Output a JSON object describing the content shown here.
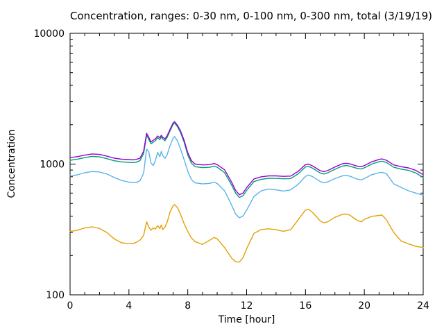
{
  "chart_data": {
    "type": "line",
    "title": "Concentration, ranges: 0-30 nm, 0-100 nm, 0-300 nm, total (3/19/19)",
    "xlabel": "Time [hour]",
    "ylabel": "Concentration",
    "xlim": [
      0,
      24
    ],
    "ylim": [
      100,
      10000
    ],
    "yscale": "log",
    "grid": false,
    "legend": "none",
    "border_color": "#000000",
    "xticks": [
      0,
      4,
      8,
      12,
      16,
      20,
      24
    ],
    "x_minor_step": 1,
    "yticks": [
      100,
      1000,
      10000
    ],
    "x": [
      0,
      0.5,
      1,
      1.5,
      2,
      2.5,
      3,
      3.5,
      4,
      4.25,
      4.5,
      4.75,
      5,
      5.2,
      5.35,
      5.5,
      5.65,
      5.8,
      5.95,
      6.1,
      6.2,
      6.3,
      6.45,
      6.6,
      6.8,
      7,
      7.1,
      7.3,
      7.5,
      7.75,
      8,
      8.25,
      8.5,
      9,
      9.5,
      9.8,
      10,
      10.5,
      11,
      11.25,
      11.5,
      11.75,
      12,
      12.5,
      13,
      13.5,
      14,
      14.5,
      15,
      15.5,
      16,
      16.2,
      16.5,
      17,
      17.25,
      17.5,
      18,
      18.5,
      18.75,
      19,
      19.5,
      19.8,
      20,
      20.5,
      21,
      21.2,
      21.5,
      22,
      22.5,
      23,
      23.5,
      24
    ],
    "series": [
      {
        "name": "0-30 nm",
        "color": "#e69f00",
        "values": [
          305,
          312,
          325,
          331,
          322,
          300,
          268,
          250,
          246,
          246,
          252,
          262,
          285,
          362,
          330,
          312,
          325,
          318,
          338,
          322,
          342,
          315,
          330,
          360,
          430,
          480,
          490,
          465,
          415,
          350,
          305,
          272,
          255,
          243,
          262,
          275,
          268,
          230,
          190,
          179,
          178,
          192,
          225,
          295,
          316,
          320,
          315,
          306,
          315,
          375,
          445,
          452,
          425,
          368,
          355,
          362,
          392,
          412,
          415,
          408,
          372,
          362,
          378,
          398,
          405,
          408,
          375,
          300,
          258,
          245,
          235,
          230
        ]
      },
      {
        "name": "0-100 nm",
        "color": "#56b4e9",
        "values": [
          810,
          828,
          858,
          878,
          870,
          840,
          790,
          750,
          728,
          720,
          725,
          745,
          850,
          1300,
          1240,
          1020,
          975,
          1060,
          1230,
          1140,
          1250,
          1160,
          1105,
          1180,
          1390,
          1580,
          1625,
          1500,
          1310,
          1080,
          880,
          760,
          718,
          705,
          712,
          728,
          710,
          625,
          480,
          415,
          388,
          400,
          445,
          565,
          625,
          645,
          635,
          622,
          635,
          700,
          805,
          825,
          800,
          735,
          718,
          730,
          775,
          812,
          818,
          810,
          768,
          756,
          775,
          830,
          858,
          865,
          845,
          705,
          663,
          625,
          600,
          578
        ]
      },
      {
        "name": "0-300 nm",
        "color": "#009e73",
        "values": [
          1070,
          1090,
          1120,
          1145,
          1135,
          1100,
          1060,
          1040,
          1030,
          1027,
          1033,
          1060,
          1200,
          1665,
          1545,
          1430,
          1470,
          1510,
          1590,
          1540,
          1610,
          1550,
          1510,
          1600,
          1800,
          2010,
          2060,
          1930,
          1750,
          1470,
          1170,
          1015,
          955,
          940,
          945,
          965,
          945,
          860,
          685,
          600,
          556,
          572,
          628,
          735,
          765,
          778,
          778,
          772,
          775,
          842,
          950,
          962,
          928,
          855,
          840,
          855,
          912,
          965,
          975,
          965,
          927,
          917,
          936,
          1000,
          1042,
          1052,
          1028,
          945,
          915,
          895,
          855,
          790
        ]
      },
      {
        "name": "total",
        "color": "#9400d3",
        "values": [
          1120,
          1140,
          1170,
          1195,
          1185,
          1150,
          1110,
          1090,
          1082,
          1078,
          1085,
          1110,
          1250,
          1720,
          1600,
          1480,
          1520,
          1560,
          1640,
          1590,
          1660,
          1600,
          1560,
          1650,
          1850,
          2060,
          2110,
          1980,
          1800,
          1520,
          1220,
          1060,
          1000,
          985,
          990,
          1010,
          990,
          905,
          720,
          630,
          583,
          600,
          660,
          770,
          800,
          812,
          812,
          806,
          810,
          880,
          990,
          1000,
          965,
          890,
          875,
          890,
          950,
          1005,
          1015,
          1005,
          965,
          955,
          975,
          1040,
          1085,
          1095,
          1070,
          985,
          955,
          935,
          895,
          830
        ]
      }
    ]
  }
}
